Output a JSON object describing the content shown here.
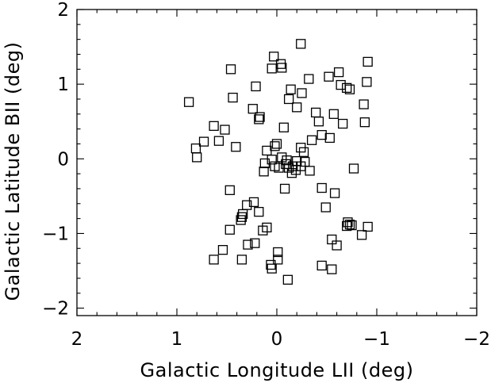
{
  "chart_data": {
    "type": "scatter",
    "title": "",
    "xlabel": "Galactic Longitude LII (deg)",
    "ylabel": "Galactic Latitude BII (deg)",
    "xlim": [
      2,
      -2
    ],
    "ylim": [
      -2.1,
      2.0
    ],
    "x_reversed": true,
    "grid": false,
    "marker": "open-square",
    "xticks": [
      {
        "value": 2,
        "label": "2"
      },
      {
        "value": 1,
        "label": "1"
      },
      {
        "value": 0,
        "label": "0"
      },
      {
        "value": -1,
        "label": "−1"
      },
      {
        "value": -2,
        "label": "−2"
      }
    ],
    "yticks": [
      {
        "value": 2,
        "label": "2"
      },
      {
        "value": 1,
        "label": "1"
      },
      {
        "value": 0,
        "label": "0"
      },
      {
        "value": -1,
        "label": "−1"
      },
      {
        "value": -2,
        "label": "−2"
      }
    ],
    "points": [
      {
        "x": -0.24,
        "y": 1.54
      },
      {
        "x": 0.03,
        "y": 1.37
      },
      {
        "x": -0.04,
        "y": 1.27
      },
      {
        "x": -0.05,
        "y": 1.22
      },
      {
        "x": 0.05,
        "y": 1.21
      },
      {
        "x": 0.46,
        "y": 1.2
      },
      {
        "x": -0.91,
        "y": 1.3
      },
      {
        "x": -0.62,
        "y": 1.16
      },
      {
        "x": -0.52,
        "y": 1.1
      },
      {
        "x": -0.32,
        "y": 1.07
      },
      {
        "x": -0.9,
        "y": 1.03
      },
      {
        "x": 0.21,
        "y": 0.97
      },
      {
        "x": -0.64,
        "y": 0.99
      },
      {
        "x": -0.7,
        "y": 0.95
      },
      {
        "x": -0.73,
        "y": 0.93
      },
      {
        "x": -0.14,
        "y": 0.93
      },
      {
        "x": -0.25,
        "y": 0.88
      },
      {
        "x": 0.44,
        "y": 0.82
      },
      {
        "x": -0.12,
        "y": 0.8
      },
      {
        "x": 0.88,
        "y": 0.76
      },
      {
        "x": -0.87,
        "y": 0.73
      },
      {
        "x": -0.2,
        "y": 0.69
      },
      {
        "x": 0.24,
        "y": 0.67
      },
      {
        "x": -0.39,
        "y": 0.62
      },
      {
        "x": -0.57,
        "y": 0.6
      },
      {
        "x": 0.17,
        "y": 0.56
      },
      {
        "x": 0.18,
        "y": 0.53
      },
      {
        "x": -0.42,
        "y": 0.5
      },
      {
        "x": -0.66,
        "y": 0.47
      },
      {
        "x": -0.88,
        "y": 0.49
      },
      {
        "x": 0.63,
        "y": 0.44
      },
      {
        "x": -0.07,
        "y": 0.42
      },
      {
        "x": 0.52,
        "y": 0.39
      },
      {
        "x": -0.45,
        "y": 0.32
      },
      {
        "x": -0.53,
        "y": 0.28
      },
      {
        "x": 0.73,
        "y": 0.23
      },
      {
        "x": 0.58,
        "y": 0.24
      },
      {
        "x": 0.0,
        "y": 0.2
      },
      {
        "x": 0.02,
        "y": 0.17
      },
      {
        "x": -0.24,
        "y": 0.15
      },
      {
        "x": -0.35,
        "y": 0.25
      },
      {
        "x": 0.41,
        "y": 0.16
      },
      {
        "x": 0.81,
        "y": 0.14
      },
      {
        "x": 0.1,
        "y": 0.11
      },
      {
        "x": -0.27,
        "y": 0.09
      },
      {
        "x": 0.8,
        "y": 0.02
      },
      {
        "x": -0.05,
        "y": 0.02
      },
      {
        "x": 0.05,
        "y": -0.01
      },
      {
        "x": -0.1,
        "y": -0.02
      },
      {
        "x": -0.2,
        "y": -0.03
      },
      {
        "x": -0.28,
        "y": -0.04
      },
      {
        "x": 0.12,
        "y": -0.06
      },
      {
        "x": -0.09,
        "y": -0.07
      },
      {
        "x": -0.16,
        "y": -0.1
      },
      {
        "x": -0.24,
        "y": -0.1
      },
      {
        "x": -0.12,
        "y": -0.12
      },
      {
        "x": -0.02,
        "y": -0.12
      },
      {
        "x": 0.02,
        "y": -0.1
      },
      {
        "x": -0.19,
        "y": -0.15
      },
      {
        "x": -0.15,
        "y": -0.19
      },
      {
        "x": 0.13,
        "y": -0.17
      },
      {
        "x": -0.33,
        "y": -0.16
      },
      {
        "x": -0.77,
        "y": -0.13
      },
      {
        "x": -0.08,
        "y": -0.4
      },
      {
        "x": 0.47,
        "y": -0.42
      },
      {
        "x": -0.45,
        "y": -0.39
      },
      {
        "x": -0.58,
        "y": -0.46
      },
      {
        "x": 0.23,
        "y": -0.58
      },
      {
        "x": 0.3,
        "y": -0.62
      },
      {
        "x": 0.34,
        "y": -0.74
      },
      {
        "x": 0.18,
        "y": -0.71
      },
      {
        "x": 0.35,
        "y": -0.78
      },
      {
        "x": -0.49,
        "y": -0.65
      },
      {
        "x": 0.36,
        "y": -0.82
      },
      {
        "x": -0.71,
        "y": -0.85
      },
      {
        "x": -0.73,
        "y": -0.88
      },
      {
        "x": -0.7,
        "y": -0.9
      },
      {
        "x": -0.75,
        "y": -0.89
      },
      {
        "x": -0.91,
        "y": -0.91
      },
      {
        "x": 0.47,
        "y": -0.95
      },
      {
        "x": 0.1,
        "y": -0.92
      },
      {
        "x": 0.14,
        "y": -0.96
      },
      {
        "x": -0.85,
        "y": -1.02
      },
      {
        "x": -0.55,
        "y": -1.08
      },
      {
        "x": -0.6,
        "y": -1.16
      },
      {
        "x": 0.22,
        "y": -1.13
      },
      {
        "x": 0.29,
        "y": -1.15
      },
      {
        "x": 0.54,
        "y": -1.22
      },
      {
        "x": -0.01,
        "y": -1.25
      },
      {
        "x": 0.63,
        "y": -1.35
      },
      {
        "x": 0.35,
        "y": -1.35
      },
      {
        "x": -0.01,
        "y": -1.35
      },
      {
        "x": 0.06,
        "y": -1.42
      },
      {
        "x": -0.45,
        "y": -1.43
      },
      {
        "x": -0.55,
        "y": -1.48
      },
      {
        "x": 0.05,
        "y": -1.47
      },
      {
        "x": -0.11,
        "y": -1.62
      }
    ]
  }
}
